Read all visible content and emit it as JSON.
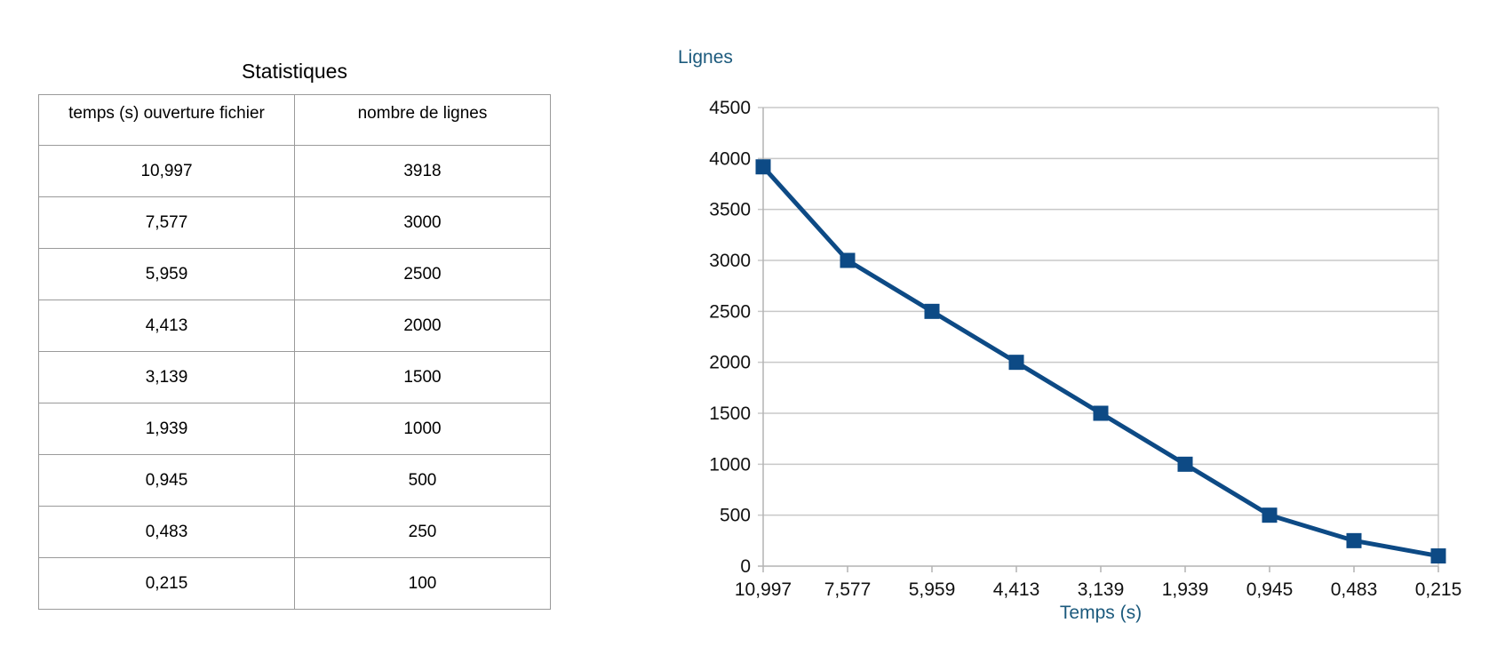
{
  "table": {
    "title": "Statistiques",
    "headers": [
      "temps (s) ouverture fichier",
      "nombre de lignes"
    ],
    "rows": [
      [
        "10,997",
        "3918"
      ],
      [
        "7,577",
        "3000"
      ],
      [
        "5,959",
        "2500"
      ],
      [
        "4,413",
        "2000"
      ],
      [
        "3,139",
        "1500"
      ],
      [
        "1,939",
        "1000"
      ],
      [
        "0,945",
        "500"
      ],
      [
        "0,483",
        "250"
      ],
      [
        "0,215",
        "100"
      ]
    ]
  },
  "chart_data": {
    "type": "line",
    "title": "",
    "xlabel": "Temps (s)",
    "ylabel": "Lignes",
    "categories": [
      "10,997",
      "7,577",
      "5,959",
      "4,413",
      "3,139",
      "1,939",
      "0,945",
      "0,483",
      "0,215"
    ],
    "series": [
      {
        "values": [
          3918,
          3000,
          2500,
          2000,
          1500,
          1000,
          500,
          250,
          100
        ],
        "color": "#0d4a85",
        "marker": "square"
      }
    ],
    "ylim": [
      0,
      4500
    ],
    "yticks": [
      0,
      500,
      1000,
      1500,
      2000,
      2500,
      3000,
      3500,
      4000,
      4500
    ],
    "grid": true,
    "legend": "none",
    "axis_label_color": "#1c5a7d"
  }
}
